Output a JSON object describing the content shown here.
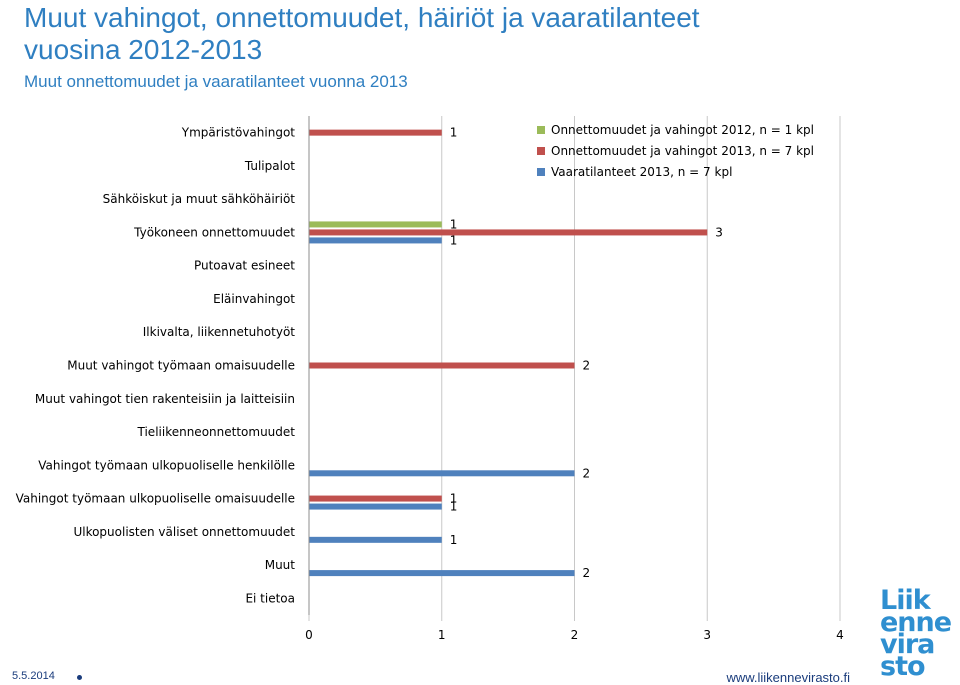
{
  "header": {
    "title_line1": "Muut vahingot, onnettomuudet, häiriöt ja vaaratilanteet",
    "title_line2": "vuosina 2012-2013",
    "subtitle": "Muut onnettomuudet ja vaaratilanteet vuonna 2013"
  },
  "footer": {
    "date": "5.5.2014",
    "url": "www.liikennevirasto.fi"
  },
  "logo": {
    "lines": [
      "Liik",
      "enne",
      "vira",
      "sto"
    ]
  },
  "colors": {
    "series_2012": "#9bbb59",
    "series_2013": "#c0504d",
    "series_vaara": "#4f81bd",
    "title": "#2f7fc1"
  },
  "chart_data": {
    "type": "bar",
    "orientation": "horizontal",
    "categories": [
      "Ympäristövahingot",
      "Tulipalot",
      "Sähköiskut ja muut sähköhäiriöt",
      "Työkoneen onnettomuudet",
      "Putoavat esineet",
      "Eläinvahingot",
      "Ilkivalta, liikennetuhotyöt",
      "Muut vahingot työmaan omaisuudelle",
      "Muut vahingot tien rakenteisiin ja laitteisiin",
      "Tieliikenneonnettomuudet",
      "Vahingot työmaan ulkopuoliselle henkilölle",
      "Vahingot työmaan ulkopuoliselle omaisuudelle",
      "Ulkopuolisten väliset onnettomuudet",
      "Muut",
      "Ei tietoa"
    ],
    "series": [
      {
        "name": "Onnettomuudet ja vahingot 2012, n = 1 kpl",
        "color": "#9bbb59",
        "values": [
          0,
          0,
          0,
          1,
          0,
          0,
          0,
          0,
          0,
          0,
          0,
          0,
          0,
          0,
          0
        ]
      },
      {
        "name": "Onnettomuudet ja vahingot 2013, n = 7 kpl",
        "color": "#c0504d",
        "values": [
          1,
          0,
          0,
          3,
          0,
          0,
          0,
          2,
          0,
          0,
          0,
          1,
          0,
          0,
          0
        ]
      },
      {
        "name": "Vaaratilanteet 2013, n = 7 kpl",
        "color": "#4f81bd",
        "values": [
          0,
          0,
          0,
          1,
          0,
          0,
          0,
          0,
          0,
          0,
          2,
          1,
          1,
          2,
          0
        ]
      }
    ],
    "x_ticks": [
      "0",
      "1",
      "2",
      "3",
      "4"
    ],
    "xlim": [
      0,
      4
    ],
    "grid": true,
    "legend_position": "top-right"
  }
}
